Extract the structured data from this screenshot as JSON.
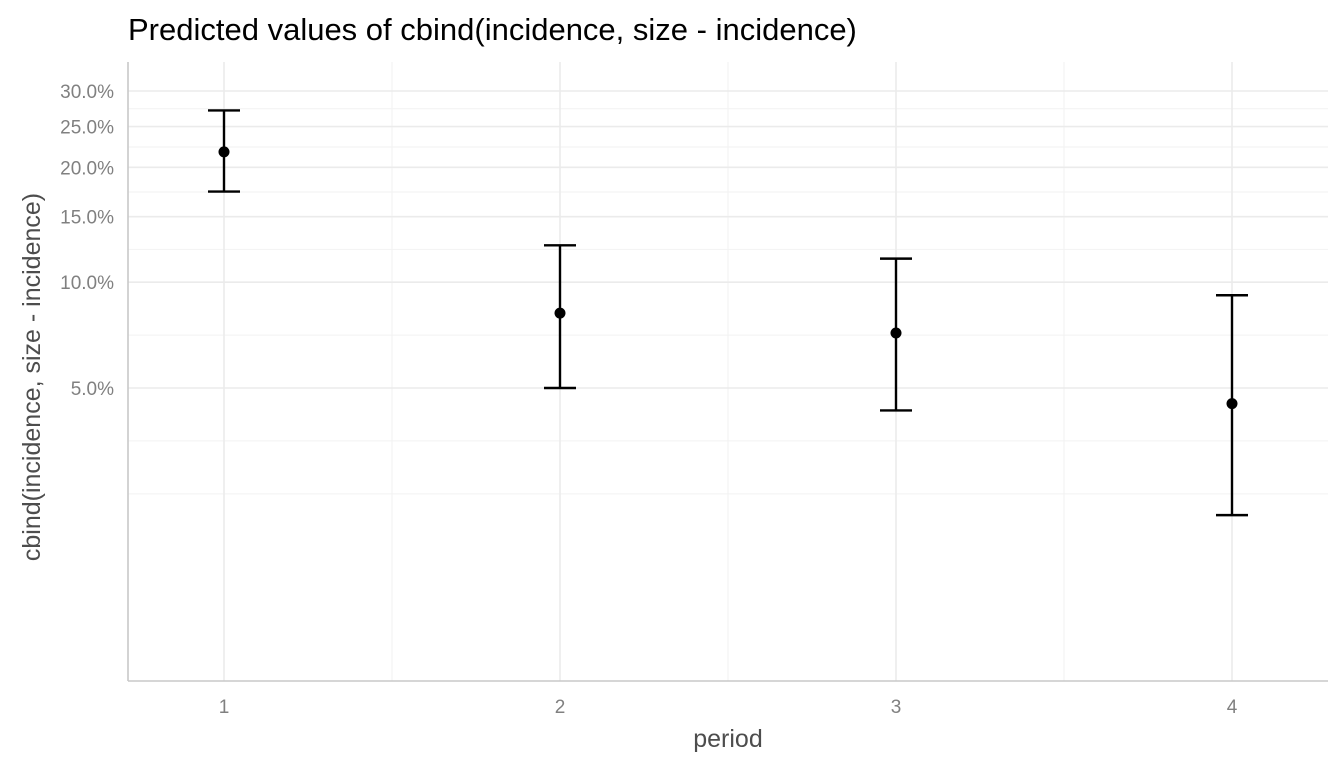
{
  "chart_data": {
    "type": "scatter",
    "title": "Predicted values of cbind(incidence, size - incidence)",
    "xlabel": "period",
    "ylabel": "cbind(incidence, size - incidence)",
    "y_scale": "logit",
    "x_ticks": [
      "1",
      "2",
      "3",
      "4"
    ],
    "y_ticks": [
      {
        "value": 0.05,
        "label": "5.0%"
      },
      {
        "value": 0.1,
        "label": "10.0%"
      },
      {
        "value": 0.15,
        "label": "15.0%"
      },
      {
        "value": 0.2,
        "label": "20.0%"
      },
      {
        "value": 0.25,
        "label": "25.0%"
      },
      {
        "value": 0.3,
        "label": "30.0%"
      }
    ],
    "points": [
      {
        "x": "1",
        "predicted": 0.218,
        "conf_low": 0.174,
        "conf_high": 0.272
      },
      {
        "x": "2",
        "predicted": 0.082,
        "conf_low": 0.05,
        "conf_high": 0.126
      },
      {
        "x": "3",
        "predicted": 0.072,
        "conf_low": 0.043,
        "conf_high": 0.116
      },
      {
        "x": "4",
        "predicted": 0.045,
        "conf_low": 0.021,
        "conf_high": 0.092
      }
    ],
    "color": "#000000",
    "grid": true,
    "legend": "none"
  }
}
